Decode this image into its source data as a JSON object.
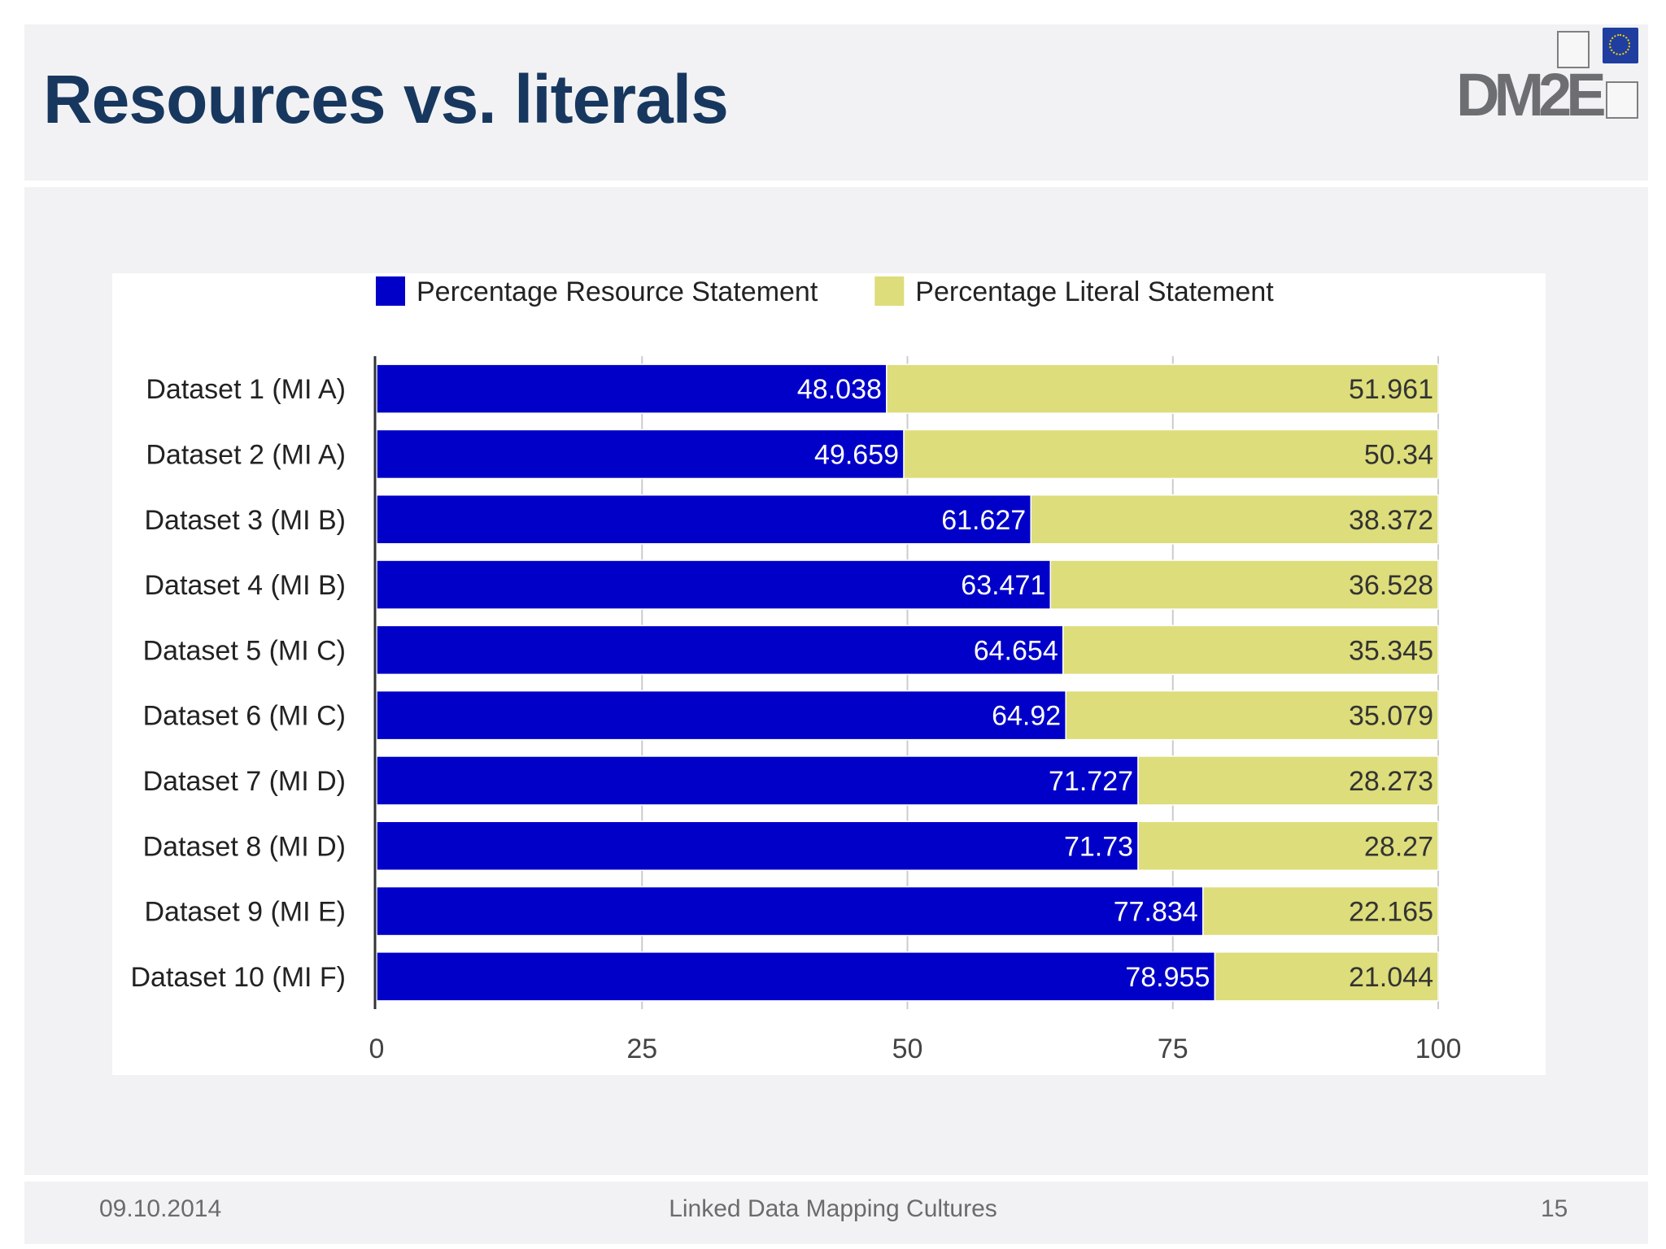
{
  "slide": {
    "title": "Resources vs. literals",
    "logo_text": "DM2E",
    "footer": {
      "date": "09.10.2014",
      "center": "Linked Data Mapping Cultures",
      "page": "15"
    }
  },
  "colors": {
    "resource": "#0000c8",
    "literal": "#dddd7b",
    "title": "#17375e"
  },
  "chart_data": {
    "type": "bar",
    "orientation": "horizontal",
    "stacked": true,
    "categories": [
      "Dataset 1 (MI A)",
      "Dataset 2 (MI A)",
      "Dataset 3 (MI B)",
      "Dataset 4 (MI B)",
      "Dataset 5 (MI C)",
      "Dataset 6 (MI C)",
      "Dataset 7 (MI D)",
      "Dataset 8 (MI D)",
      "Dataset 9 (MI E)",
      "Dataset 10 (MI F)"
    ],
    "series": [
      {
        "name": "Percentage Resource Statement",
        "color": "#0000c8",
        "values": [
          48.038,
          49.659,
          61.627,
          63.471,
          64.654,
          64.92,
          71.727,
          71.73,
          77.834,
          78.955
        ]
      },
      {
        "name": "Percentage Literal Statement",
        "color": "#dddd7b",
        "values": [
          51.961,
          50.34,
          38.372,
          36.528,
          35.345,
          35.079,
          28.273,
          28.27,
          22.165,
          21.044
        ]
      }
    ],
    "xlim": [
      0,
      100
    ],
    "xticks": [
      0,
      25,
      50,
      75,
      100
    ],
    "grid": true,
    "legend_position": "top"
  }
}
